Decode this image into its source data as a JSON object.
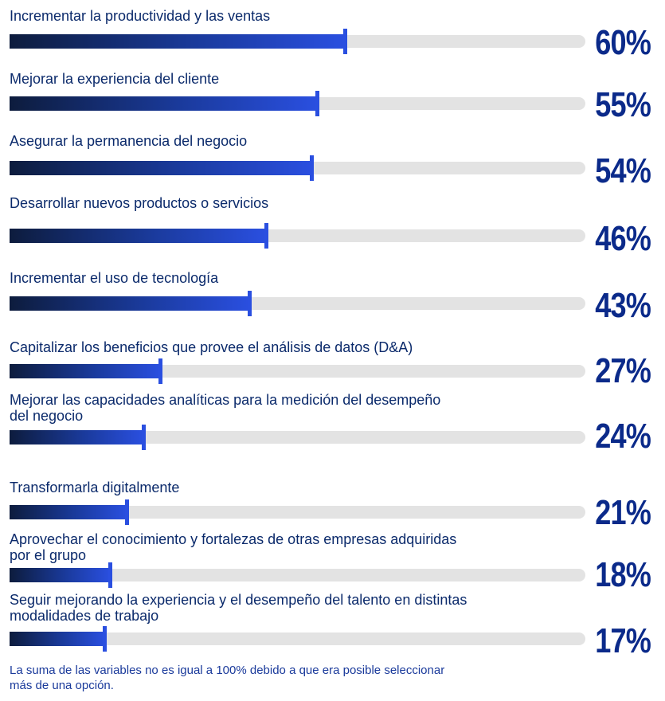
{
  "chart_data": {
    "type": "bar",
    "orientation": "horizontal",
    "categories": [
      "Incrementar la productividad y las ventas",
      "Mejorar la experiencia del cliente",
      "Asegurar la permanencia del negocio",
      "Desarrollar nuevos productos o servicios",
      "Incrementar el uso de tecnología",
      "Capitalizar los beneficios que provee el análisis de datos (D&A)",
      "Mejorar las capacidades analíticas para la medición del desempeño\ndel negocio",
      "Transformarla digitalmente",
      "Aprovechar el conocimiento y fortalezas de otras empresas adquiridas\npor el grupo",
      "Seguir mejorando la experiencia y el desempeño del talento en distintas\nmodalidades de trabajo"
    ],
    "values": [
      60,
      55,
      54,
      46,
      43,
      27,
      24,
      21,
      18,
      17
    ],
    "value_labels": [
      "60%",
      "55%",
      "54%",
      "46%",
      "43%",
      "27%",
      "24%",
      "21%",
      "18%",
      "17%"
    ],
    "xlim": [
      0,
      100
    ],
    "grid": false,
    "legend": "none",
    "colors": {
      "gradient_start": "#0d1c3d",
      "gradient_end": "#2a4fe0",
      "track": "#e3e3e3",
      "text": "#0b2a6b",
      "value": "#0b2a8a"
    }
  },
  "footnote": "La suma de las variables no es igual a 100% debido a que era posible seleccionar\nmás de una opción."
}
